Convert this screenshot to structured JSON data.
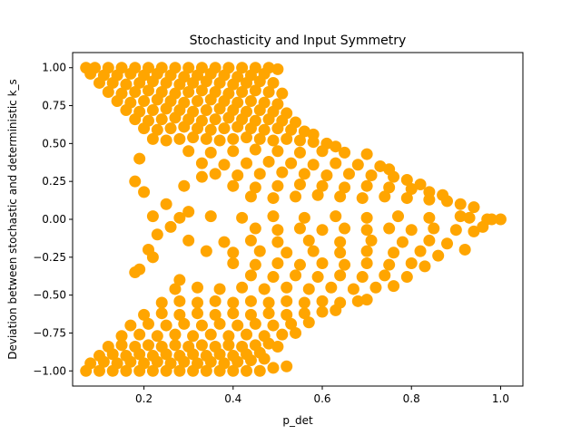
{
  "chart_data": {
    "type": "scatter",
    "title": "Stochasticity and Input Symmetry",
    "xlabel": "p_det",
    "ylabel": "Deviation between stochastic and deterministic k_s",
    "xlim": [
      0.04,
      1.05
    ],
    "ylim": [
      -1.1,
      1.1
    ],
    "xticks": [
      0.2,
      0.4,
      0.6,
      0.8,
      1.0
    ],
    "xtick_labels": [
      "0.2",
      "0.4",
      "0.6",
      "0.8",
      "1.0"
    ],
    "yticks": [
      -1.0,
      -0.75,
      -0.5,
      -0.25,
      0.0,
      0.25,
      0.5,
      0.75,
      1.0
    ],
    "ytick_labels": [
      "−1.00",
      "−0.75",
      "−0.50",
      "−0.25",
      "0.00",
      "0.25",
      "0.50",
      "0.75",
      "1.00"
    ],
    "grid": false,
    "legend": "none",
    "color": "#ffa500",
    "series": [
      {
        "x": [
          0.07,
          0.09,
          0.12,
          0.15,
          0.18,
          0.21,
          0.24,
          0.27,
          0.3,
          0.33,
          0.36,
          0.39,
          0.42,
          0.45,
          0.48,
          0.5,
          0.08,
          0.11,
          0.14,
          0.17,
          0.2,
          0.23,
          0.26,
          0.29,
          0.32,
          0.35,
          0.38,
          0.41,
          0.44,
          0.47,
          0.1,
          0.13,
          0.16,
          0.19,
          0.22,
          0.25,
          0.28,
          0.31,
          0.34,
          0.37,
          0.4,
          0.43,
          0.46,
          0.49,
          0.12,
          0.15,
          0.18,
          0.21,
          0.24,
          0.27,
          0.3,
          0.33,
          0.36,
          0.39,
          0.42,
          0.45,
          0.48,
          0.51,
          0.14,
          0.17,
          0.2,
          0.23,
          0.26,
          0.29,
          0.32,
          0.35,
          0.38,
          0.41,
          0.44,
          0.47,
          0.5,
          0.16,
          0.19,
          0.22,
          0.25,
          0.28,
          0.31,
          0.34,
          0.37,
          0.4,
          0.43,
          0.46,
          0.49,
          0.52,
          0.18,
          0.21,
          0.24,
          0.27,
          0.3,
          0.33,
          0.36,
          0.39,
          0.42,
          0.45,
          0.48,
          0.51,
          0.54,
          0.2,
          0.23,
          0.26,
          0.29,
          0.32,
          0.35,
          0.38,
          0.41,
          0.44,
          0.47,
          0.5,
          0.53,
          0.56,
          0.58,
          0.22,
          0.25,
          0.28,
          0.31,
          0.34,
          0.37,
          0.4,
          0.43,
          0.46,
          0.49,
          0.52,
          0.55,
          0.58,
          0.61,
          0.63,
          0.3,
          0.35,
          0.4,
          0.45,
          0.5,
          0.55,
          0.6,
          0.65,
          0.7,
          0.33,
          0.38,
          0.43,
          0.48,
          0.53,
          0.58,
          0.63,
          0.68,
          0.73,
          0.75,
          0.36,
          0.41,
          0.46,
          0.51,
          0.56,
          0.61,
          0.66,
          0.71,
          0.76,
          0.79,
          0.82,
          0.4,
          0.45,
          0.5,
          0.55,
          0.6,
          0.65,
          0.7,
          0.75,
          0.8,
          0.84,
          0.87,
          0.44,
          0.49,
          0.54,
          0.59,
          0.64,
          0.69,
          0.74,
          0.79,
          0.84,
          0.88,
          0.91,
          0.94,
          0.22,
          0.28,
          0.35,
          0.42,
          0.49,
          0.56,
          0.63,
          0.7,
          0.77,
          0.84,
          0.91,
          0.93,
          0.97,
          0.98,
          1.0,
          0.45,
          0.5,
          0.55,
          0.6,
          0.65,
          0.7,
          0.75,
          0.8,
          0.85,
          0.9,
          0.94,
          0.96,
          0.3,
          0.38,
          0.44,
          0.5,
          0.57,
          0.64,
          0.71,
          0.78,
          0.84,
          0.88,
          0.92,
          0.34,
          0.4,
          0.46,
          0.52,
          0.58,
          0.64,
          0.7,
          0.76,
          0.82,
          0.86,
          0.4,
          0.45,
          0.5,
          0.55,
          0.6,
          0.65,
          0.7,
          0.75,
          0.8,
          0.83,
          0.44,
          0.49,
          0.54,
          0.59,
          0.64,
          0.69,
          0.74,
          0.79,
          0.27,
          0.32,
          0.37,
          0.42,
          0.47,
          0.52,
          0.57,
          0.62,
          0.67,
          0.72,
          0.76,
          0.24,
          0.28,
          0.32,
          0.36,
          0.4,
          0.44,
          0.48,
          0.52,
          0.56,
          0.6,
          0.64,
          0.68,
          0.7,
          0.2,
          0.24,
          0.28,
          0.32,
          0.36,
          0.4,
          0.44,
          0.48,
          0.52,
          0.56,
          0.6,
          0.63,
          0.17,
          0.21,
          0.25,
          0.29,
          0.33,
          0.37,
          0.41,
          0.45,
          0.49,
          0.53,
          0.57,
          0.15,
          0.19,
          0.23,
          0.27,
          0.31,
          0.35,
          0.39,
          0.43,
          0.47,
          0.51,
          0.54,
          0.12,
          0.15,
          0.18,
          0.21,
          0.24,
          0.27,
          0.3,
          0.33,
          0.36,
          0.39,
          0.42,
          0.45,
          0.48,
          0.5,
          0.1,
          0.13,
          0.16,
          0.19,
          0.22,
          0.25,
          0.28,
          0.31,
          0.34,
          0.37,
          0.4,
          0.43,
          0.46,
          0.08,
          0.11,
          0.14,
          0.17,
          0.2,
          0.23,
          0.26,
          0.29,
          0.32,
          0.35,
          0.38,
          0.41,
          0.44,
          0.47,
          0.07,
          0.1,
          0.13,
          0.16,
          0.19,
          0.22,
          0.25,
          0.28,
          0.31,
          0.34,
          0.37,
          0.4,
          0.43,
          0.46,
          0.49,
          0.52,
          0.19,
          0.18,
          0.2,
          0.25,
          0.23,
          0.21,
          0.19,
          0.28,
          0.3,
          0.22,
          0.33,
          0.26,
          0.18,
          0.29
        ],
        "y": [
          1.0,
          1.0,
          1.0,
          1.0,
          1.0,
          1.0,
          1.0,
          1.0,
          1.0,
          1.0,
          1.0,
          1.0,
          1.0,
          1.0,
          1.0,
          0.99,
          0.96,
          0.95,
          0.95,
          0.96,
          0.95,
          0.96,
          0.95,
          0.94,
          0.95,
          0.96,
          0.95,
          0.94,
          0.95,
          0.96,
          0.9,
          0.9,
          0.89,
          0.9,
          0.91,
          0.9,
          0.89,
          0.9,
          0.91,
          0.9,
          0.89,
          0.9,
          0.91,
          0.9,
          0.84,
          0.83,
          0.84,
          0.85,
          0.84,
          0.83,
          0.84,
          0.85,
          0.84,
          0.83,
          0.84,
          0.85,
          0.84,
          0.83,
          0.78,
          0.77,
          0.78,
          0.79,
          0.78,
          0.77,
          0.78,
          0.79,
          0.78,
          0.77,
          0.78,
          0.77,
          0.76,
          0.72,
          0.71,
          0.72,
          0.73,
          0.72,
          0.71,
          0.72,
          0.73,
          0.72,
          0.71,
          0.72,
          0.71,
          0.7,
          0.66,
          0.65,
          0.66,
          0.67,
          0.66,
          0.65,
          0.66,
          0.67,
          0.66,
          0.65,
          0.66,
          0.65,
          0.64,
          0.6,
          0.59,
          0.6,
          0.61,
          0.6,
          0.59,
          0.6,
          0.61,
          0.6,
          0.59,
          0.6,
          0.59,
          0.58,
          0.56,
          0.53,
          0.52,
          0.53,
          0.54,
          0.53,
          0.52,
          0.53,
          0.54,
          0.53,
          0.52,
          0.53,
          0.52,
          0.51,
          0.5,
          0.48,
          0.45,
          0.44,
          0.45,
          0.46,
          0.45,
          0.44,
          0.45,
          0.44,
          0.43,
          0.37,
          0.36,
          0.37,
          0.38,
          0.37,
          0.36,
          0.37,
          0.36,
          0.35,
          0.33,
          0.3,
          0.29,
          0.3,
          0.31,
          0.3,
          0.29,
          0.3,
          0.29,
          0.28,
          0.26,
          0.23,
          0.22,
          0.21,
          0.22,
          0.23,
          0.22,
          0.21,
          0.22,
          0.21,
          0.2,
          0.18,
          0.16,
          0.15,
          0.14,
          0.15,
          0.16,
          0.15,
          0.14,
          0.15,
          0.14,
          0.13,
          0.12,
          0.1,
          0.08,
          0.02,
          0.01,
          0.02,
          0.01,
          0.02,
          0.01,
          0.02,
          0.01,
          0.02,
          0.01,
          0.02,
          0.01,
          0.0,
          0.0,
          0.0,
          -0.06,
          -0.07,
          -0.06,
          -0.07,
          -0.06,
          -0.07,
          -0.06,
          -0.07,
          -0.06,
          -0.07,
          -0.08,
          -0.05,
          -0.14,
          -0.15,
          -0.14,
          -0.15,
          -0.14,
          -0.15,
          -0.14,
          -0.15,
          -0.14,
          -0.16,
          -0.2,
          -0.21,
          -0.22,
          -0.21,
          -0.22,
          -0.21,
          -0.22,
          -0.21,
          -0.22,
          -0.21,
          -0.24,
          -0.29,
          -0.3,
          -0.29,
          -0.3,
          -0.29,
          -0.3,
          -0.29,
          -0.3,
          -0.29,
          -0.31,
          -0.37,
          -0.38,
          -0.37,
          -0.38,
          -0.37,
          -0.38,
          -0.37,
          -0.38,
          -0.46,
          -0.45,
          -0.46,
          -0.45,
          -0.46,
          -0.45,
          -0.46,
          -0.45,
          -0.46,
          -0.45,
          -0.44,
          -0.55,
          -0.54,
          -0.55,
          -0.54,
          -0.55,
          -0.54,
          -0.55,
          -0.54,
          -0.55,
          -0.54,
          -0.55,
          -0.54,
          -0.53,
          -0.63,
          -0.62,
          -0.63,
          -0.62,
          -0.63,
          -0.62,
          -0.63,
          -0.62,
          -0.63,
          -0.62,
          -0.61,
          -0.6,
          -0.7,
          -0.69,
          -0.7,
          -0.69,
          -0.7,
          -0.69,
          -0.7,
          -0.69,
          -0.7,
          -0.69,
          -0.68,
          -0.77,
          -0.76,
          -0.77,
          -0.76,
          -0.77,
          -0.76,
          -0.77,
          -0.76,
          -0.77,
          -0.76,
          -0.75,
          -0.84,
          -0.83,
          -0.84,
          -0.83,
          -0.84,
          -0.83,
          -0.84,
          -0.83,
          -0.84,
          -0.83,
          -0.84,
          -0.83,
          -0.82,
          -0.84,
          -0.9,
          -0.89,
          -0.9,
          -0.89,
          -0.9,
          -0.89,
          -0.9,
          -0.89,
          -0.9,
          -0.89,
          -0.9,
          -0.89,
          -0.88,
          -0.95,
          -0.94,
          -0.95,
          -0.94,
          -0.95,
          -0.94,
          -0.95,
          -0.94,
          -0.95,
          -0.94,
          -0.95,
          -0.94,
          -0.93,
          -0.92,
          -1.0,
          -1.0,
          -1.0,
          -1.0,
          -1.0,
          -1.0,
          -1.0,
          -1.0,
          -1.0,
          -1.0,
          -1.0,
          -1.0,
          -1.0,
          -1.0,
          -0.98,
          -0.97,
          0.4,
          0.25,
          0.18,
          0.1,
          -0.1,
          -0.2,
          -0.33,
          -0.4,
          0.05,
          -0.25,
          0.28,
          -0.05,
          -0.35,
          0.22
        ]
      }
    ]
  }
}
